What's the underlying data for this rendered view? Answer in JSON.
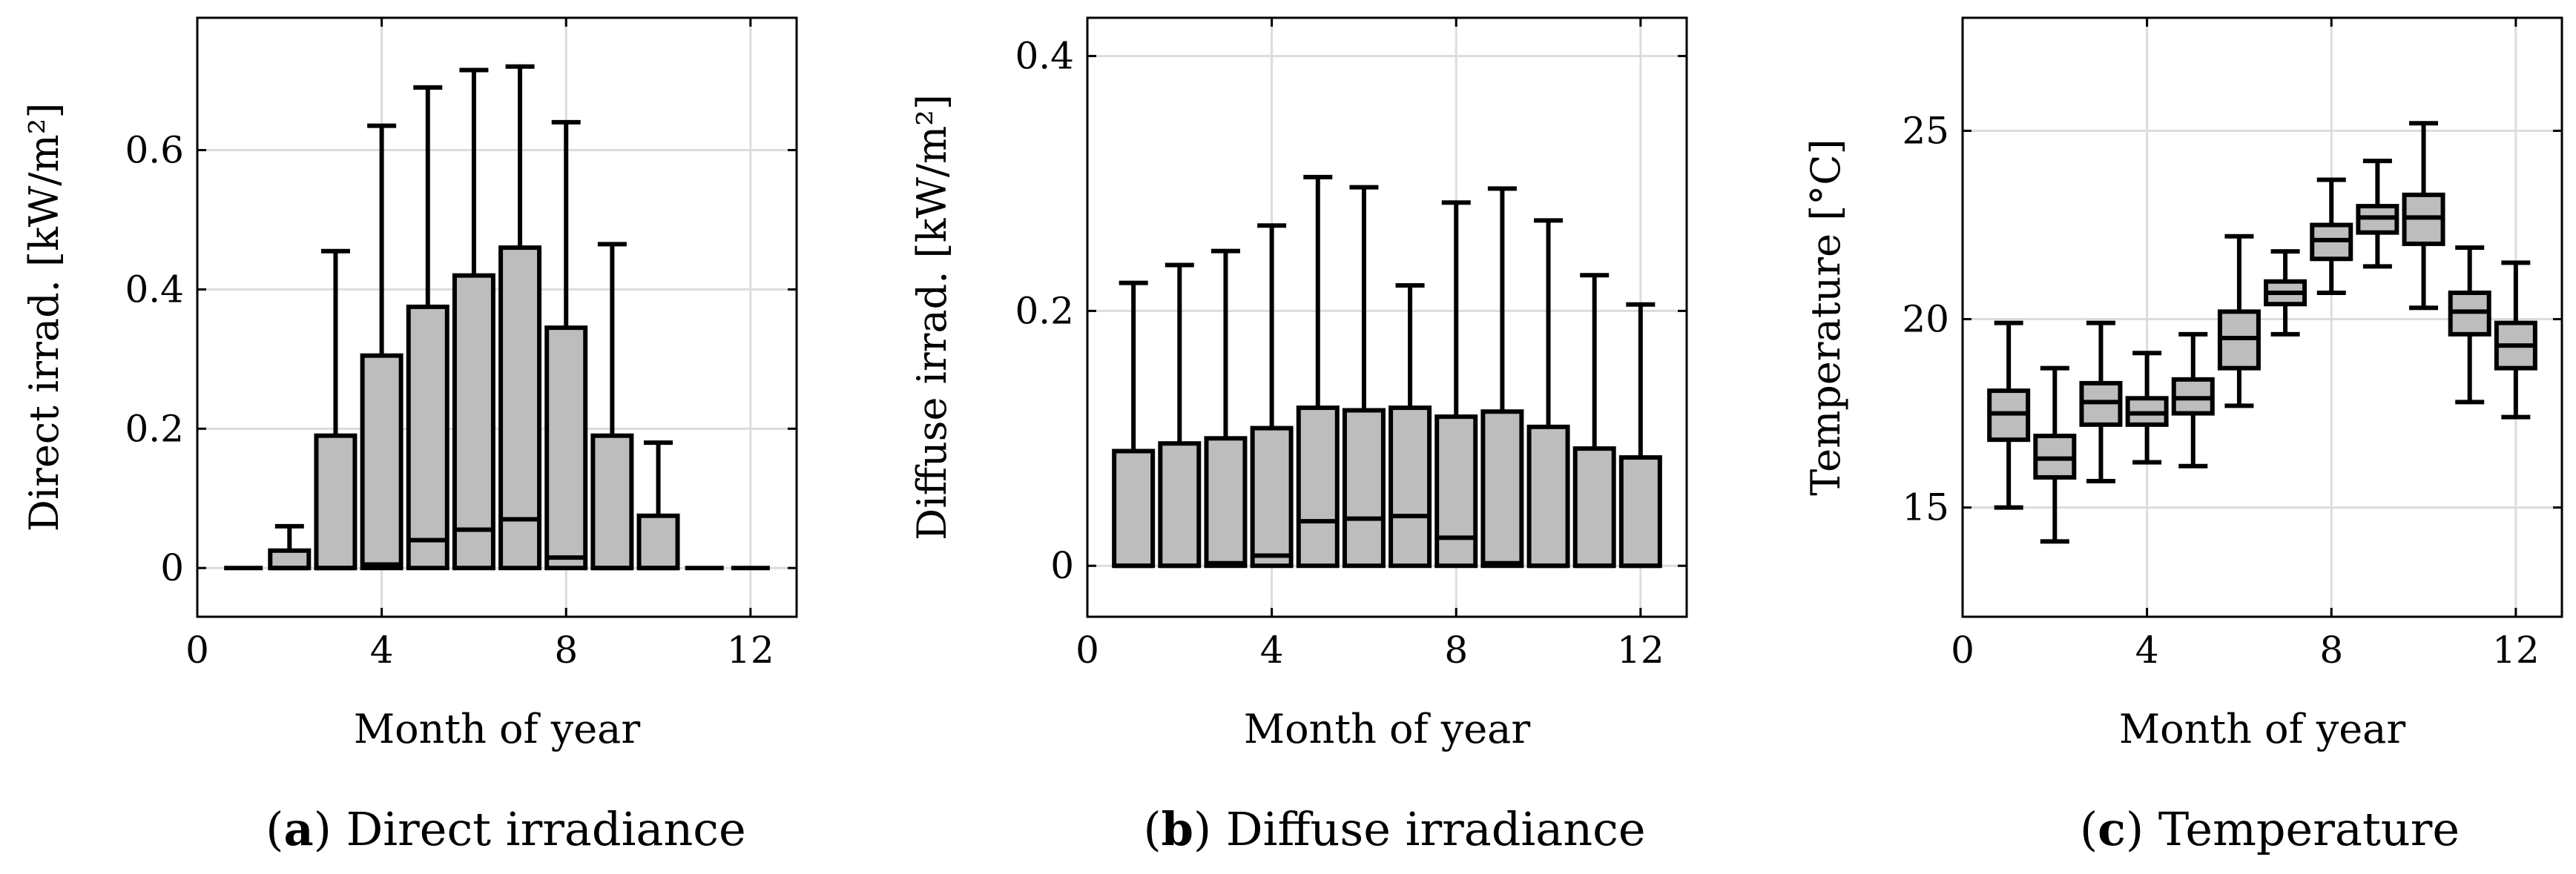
{
  "chart_data": [
    {
      "type": "boxplot",
      "id": "a",
      "caption_letter": "a",
      "caption_text": "Direct irradiance",
      "title": "",
      "xlabel": "Month of year",
      "ylabel": "Direct irrad. [kW/m²]",
      "xlim": [
        0,
        13
      ],
      "ylim": [
        -0.07,
        0.79
      ],
      "xticks": [
        0,
        4,
        8,
        12
      ],
      "yticks": [
        0,
        0.2,
        0.4,
        0.6
      ],
      "ytick_labels": [
        "0",
        "0.2",
        "0.4",
        "0.6"
      ],
      "months": [
        1,
        2,
        3,
        4,
        5,
        6,
        7,
        8,
        9,
        10,
        11,
        12
      ],
      "q1": [
        0,
        0,
        0,
        0,
        0,
        0,
        0,
        0,
        0,
        0,
        0,
        0
      ],
      "median": [
        0,
        0,
        0,
        0.005,
        0.04,
        0.055,
        0.07,
        0.015,
        0,
        0,
        0,
        0
      ],
      "q3": [
        0,
        0.025,
        0.19,
        0.305,
        0.375,
        0.42,
        0.46,
        0.345,
        0.19,
        0.075,
        0,
        0
      ],
      "whisker_low": [
        0,
        0,
        0,
        0,
        0,
        0,
        0,
        0,
        0,
        0,
        0,
        0
      ],
      "whisker_high": [
        0,
        0.06,
        0.455,
        0.635,
        0.69,
        0.715,
        0.72,
        0.64,
        0.465,
        0.18,
        0,
        0
      ]
    },
    {
      "type": "boxplot",
      "id": "b",
      "caption_letter": "b",
      "caption_text": "Diffuse irradiance",
      "title": "",
      "xlabel": "Month of year",
      "ylabel": "Diffuse irrad. [kW/m²]",
      "xlim": [
        0,
        13
      ],
      "ylim": [
        -0.04,
        0.43
      ],
      "xticks": [
        0,
        4,
        8,
        12
      ],
      "yticks": [
        0,
        0.2,
        0.4
      ],
      "ytick_labels": [
        "0",
        "0.2",
        "0.4"
      ],
      "months": [
        1,
        2,
        3,
        4,
        5,
        6,
        7,
        8,
        9,
        10,
        11,
        12
      ],
      "q1": [
        0,
        0,
        0,
        0,
        0,
        0,
        0,
        0,
        0,
        0,
        0,
        0
      ],
      "median": [
        0,
        0,
        0.002,
        0.008,
        0.035,
        0.037,
        0.039,
        0.022,
        0.002,
        0,
        0,
        0
      ],
      "q3": [
        0.09,
        0.096,
        0.1,
        0.108,
        0.124,
        0.122,
        0.124,
        0.117,
        0.121,
        0.109,
        0.092,
        0.085
      ],
      "whisker_low": [
        0,
        0,
        0,
        0,
        0,
        0,
        0,
        0,
        0,
        0,
        0,
        0
      ],
      "whisker_high": [
        0.222,
        0.236,
        0.247,
        0.267,
        0.305,
        0.297,
        0.22,
        0.285,
        0.296,
        0.271,
        0.228,
        0.205
      ]
    },
    {
      "type": "boxplot",
      "id": "c",
      "caption_letter": "c",
      "caption_text": "Temperature",
      "title": "",
      "xlabel": "Month of year",
      "ylabel": "Temperature [°C]",
      "xlim": [
        0,
        13
      ],
      "ylim": [
        12.1,
        28
      ],
      "xticks": [
        0,
        4,
        8,
        12
      ],
      "yticks": [
        15,
        20,
        25
      ],
      "ytick_labels": [
        "15",
        "20",
        "25"
      ],
      "months": [
        1,
        2,
        3,
        4,
        5,
        6,
        7,
        8,
        9,
        10,
        11,
        12
      ],
      "q1": [
        16.8,
        15.8,
        17.2,
        17.2,
        17.5,
        18.7,
        20.4,
        21.6,
        22.3,
        22,
        19.6,
        18.7
      ],
      "median": [
        17.5,
        16.3,
        17.8,
        17.5,
        17.9,
        19.5,
        20.7,
        22.1,
        22.7,
        22.7,
        20.2,
        19.3
      ],
      "q3": [
        18.1,
        16.9,
        18.3,
        17.9,
        18.4,
        20.2,
        21,
        22.5,
        23,
        23.3,
        20.7,
        19.9
      ],
      "whisker_low": [
        15,
        14.1,
        15.7,
        16.2,
        16.1,
        17.7,
        19.6,
        20.7,
        21.4,
        20.3,
        17.8,
        17.4
      ],
      "whisker_high": [
        19.9,
        18.7,
        19.9,
        19.1,
        19.6,
        22.2,
        21.8,
        23.7,
        24.2,
        25.2,
        21.9,
        21.5
      ]
    }
  ]
}
